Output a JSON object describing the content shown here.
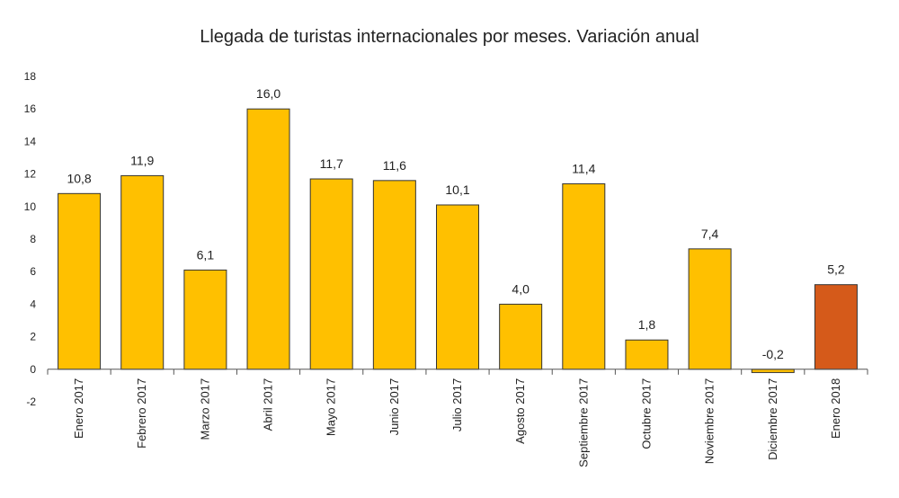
{
  "chart_data": {
    "type": "bar",
    "title": "Llegada de turistas internacionales por meses. Variación anual",
    "categories": [
      "Enero 2017",
      "Febrero 2017",
      "Marzo 2017",
      "Abril 2017",
      "Mayo 2017",
      "Junio 2017",
      "Julio 2017",
      "Agosto 2017",
      "Septiembre 2017",
      "Octubre 2017",
      "Noviembre 2017",
      "Diciembre 2017",
      "Enero 2018"
    ],
    "values": [
      10.8,
      11.9,
      6.1,
      16.0,
      11.7,
      11.6,
      10.1,
      4.0,
      11.4,
      1.8,
      7.4,
      -0.2,
      5.2
    ],
    "data_labels": [
      "10,8",
      "11,9",
      "6,1",
      "16,0",
      "11,7",
      "11,6",
      "10,1",
      "4,0",
      "11,4",
      "1,8",
      "7,4",
      "-0,2",
      "5,2"
    ],
    "ylim": [
      -2,
      18
    ],
    "yticks": [
      -2,
      0,
      2,
      4,
      6,
      8,
      10,
      12,
      14,
      16,
      18
    ],
    "grid": false,
    "legend": "none",
    "colors": {
      "default": "#FFC000",
      "highlight": "#D55A1A",
      "edge": "#333333"
    },
    "highlight_index": 12
  }
}
